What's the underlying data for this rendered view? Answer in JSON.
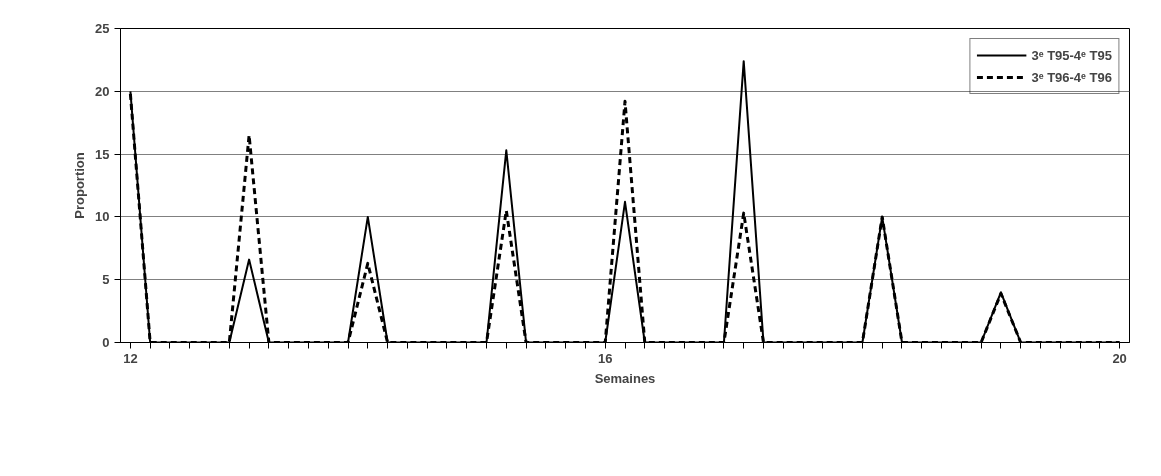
{
  "chart_data": {
    "type": "line",
    "xlabel": "Semaines",
    "ylabel": "Proportion",
    "categories": [
      "12",
      null,
      null,
      null,
      null,
      null,
      null,
      null,
      null,
      null,
      null,
      null,
      null,
      null,
      null,
      null,
      null,
      null,
      null,
      null,
      null,
      null,
      null,
      null,
      "16",
      null,
      null,
      null,
      null,
      null,
      null,
      null,
      null,
      null,
      null,
      null,
      null,
      null,
      null,
      null,
      null,
      null,
      null,
      null,
      null,
      null,
      null,
      null,
      null,
      null,
      "20"
    ],
    "series": [
      {
        "name": "3ᵉ T95-4ᵉ T95",
        "color": "#000000",
        "line_style": "solid",
        "values": [
          20,
          0,
          0,
          0,
          0,
          0,
          6.6,
          0,
          0,
          0,
          0,
          0,
          10,
          0,
          0,
          0,
          0,
          0,
          0,
          15.3,
          0,
          0,
          0,
          0,
          0,
          11.2,
          0,
          0,
          0,
          0,
          0,
          22.4,
          0,
          0,
          0,
          0,
          0,
          0,
          10,
          0,
          0,
          0,
          0,
          0,
          4,
          0,
          0,
          0,
          0,
          0,
          0
        ]
      },
      {
        "name": "3ᵉ T96-4ᵉ T96",
        "color": "#000000",
        "line_style": "dashed",
        "values": [
          19.8,
          0,
          0,
          0,
          0,
          0,
          16.5,
          0,
          0,
          0,
          0,
          0,
          6.3,
          0,
          0,
          0,
          0,
          0,
          0,
          10.5,
          0,
          0,
          0,
          0,
          0,
          19.2,
          0,
          0,
          0,
          0,
          0,
          10.3,
          0,
          0,
          0,
          0,
          0,
          0,
          10,
          0,
          0,
          0,
          0,
          0,
          3.9,
          0,
          0,
          0,
          0,
          0,
          0
        ]
      }
    ],
    "ylim": [
      0,
      25
    ],
    "yticks": [
      0,
      5,
      10,
      15,
      20,
      25
    ],
    "grid": "y",
    "legend": "top right",
    "marker": "none"
  }
}
